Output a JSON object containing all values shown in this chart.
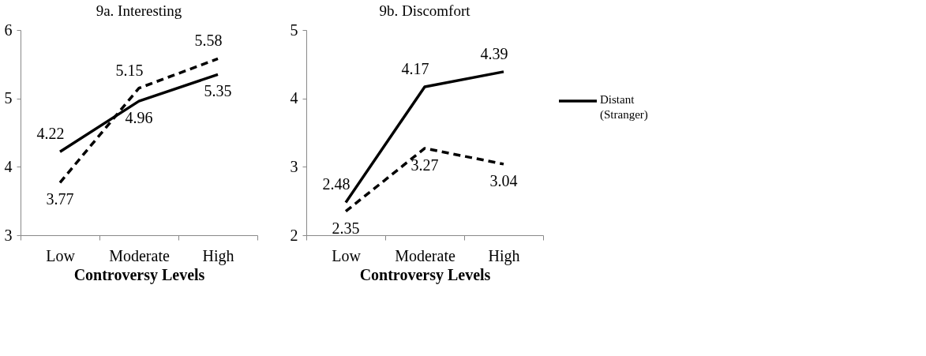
{
  "chart_data": [
    {
      "type": "line",
      "title": "9a. Interesting",
      "xlabel": "Controversy Levels",
      "categories": [
        "Low",
        "Moderate",
        "High"
      ],
      "ylim": [
        3,
        6
      ],
      "yticks": [
        3,
        4,
        5,
        6
      ],
      "grid": false,
      "data_labels": true,
      "legend": false,
      "marker": "none",
      "series": [
        {
          "color": "#000000",
          "line_style": "solid",
          "values": [
            4.22,
            4.96,
            5.35
          ]
        },
        {
          "color": "#000000",
          "line_style": "dashed",
          "values": [
            3.77,
            5.15,
            5.58
          ]
        }
      ]
    },
    {
      "type": "line",
      "title": "9b. Discomfort",
      "xlabel": "Controversy Levels",
      "categories": [
        "Low",
        "Moderate",
        "High"
      ],
      "ylim": [
        2,
        5
      ],
      "yticks": [
        2,
        3,
        4,
        5
      ],
      "grid": false,
      "data_labels": true,
      "legend": "right",
      "marker": "none",
      "series": [
        {
          "name": "Distant (Stranger)",
          "color": "#000000",
          "line_style": "solid",
          "values": [
            2.48,
            4.17,
            4.39
          ]
        },
        {
          "color": "#000000",
          "line_style": "dashed",
          "values": [
            2.35,
            3.27,
            3.04
          ]
        }
      ]
    }
  ]
}
